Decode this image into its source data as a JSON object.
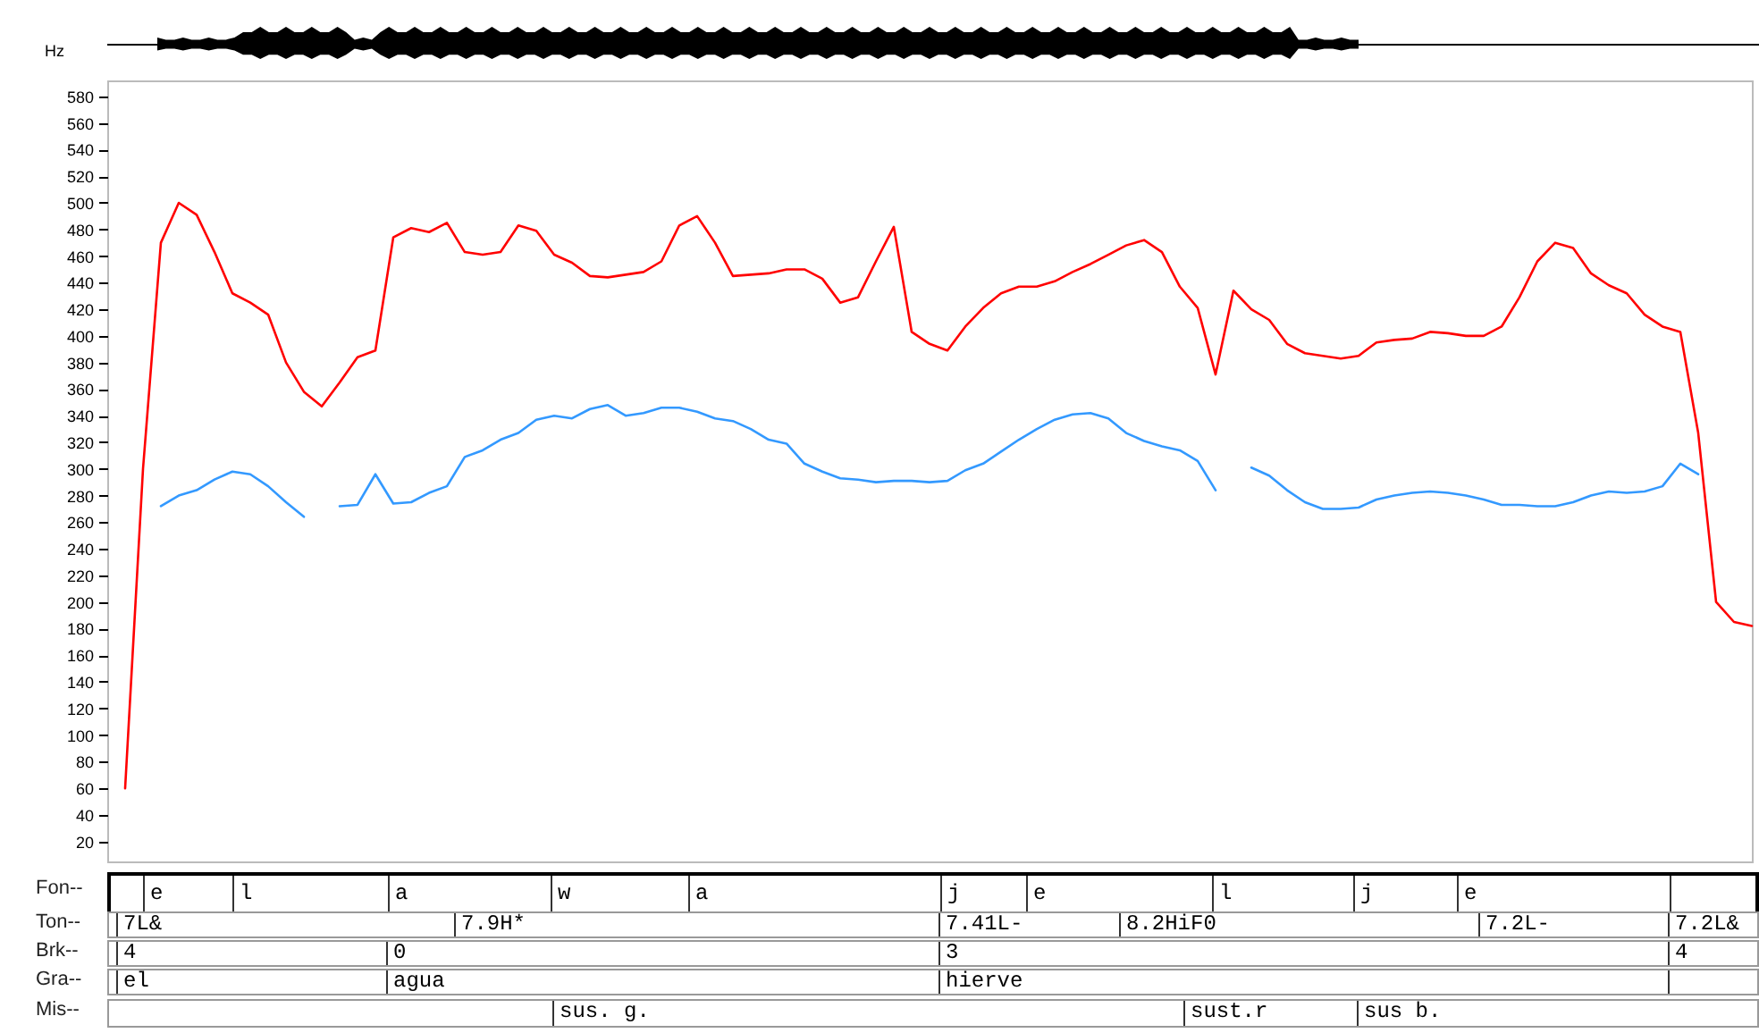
{
  "chart_data": {
    "type": "line",
    "ylabel": "Hz",
    "categories": [
      null,
      null,
      null,
      null,
      null,
      null,
      null,
      null,
      null,
      null,
      null,
      null,
      null,
      null,
      null,
      null,
      null,
      null,
      null,
      null,
      null,
      null,
      null,
      null,
      null,
      null,
      null,
      null,
      null,
      null,
      null,
      null,
      null,
      null,
      null,
      null,
      null,
      null,
      null,
      null,
      null,
      null,
      null,
      null,
      null,
      null,
      null,
      null,
      null,
      null,
      null,
      null,
      null,
      null,
      null,
      null,
      null,
      null,
      null,
      null,
      null,
      null,
      null,
      null,
      null,
      null,
      null,
      null,
      null,
      null,
      null,
      null,
      null,
      null,
      null,
      null,
      null,
      null,
      null,
      null,
      null,
      null,
      null,
      null,
      null,
      null,
      null,
      null,
      null,
      null,
      null,
      null,
      null
    ],
    "series": [
      {
        "color": "#ff0000",
        "values": [
          null,
          60,
          300,
          470,
          500,
          491,
          463,
          432,
          425,
          416,
          380,
          358,
          347,
          365,
          384,
          389,
          474,
          481,
          478,
          485,
          463,
          461,
          463,
          483,
          479,
          461,
          455,
          445,
          444,
          446,
          448,
          456,
          483,
          490,
          470,
          445,
          446,
          447,
          450,
          450,
          443,
          425,
          429,
          456,
          482,
          403,
          394,
          389,
          407,
          421,
          432,
          437,
          437,
          441,
          448,
          454,
          461,
          468,
          472,
          463,
          437,
          421,
          371,
          434,
          420,
          412,
          394,
          387,
          385,
          383,
          385,
          395,
          397,
          398,
          403,
          402,
          400,
          400,
          407,
          429,
          456,
          470,
          466,
          447,
          438,
          432,
          416,
          407,
          403,
          327,
          200,
          185,
          182
        ]
      },
      {
        "color": "#3399ff",
        "values": [
          null,
          null,
          null,
          272,
          280,
          284,
          292,
          298,
          296,
          287,
          275,
          264,
          null,
          272,
          273,
          296,
          274,
          275,
          282,
          287,
          309,
          314,
          322,
          327,
          337,
          340,
          338,
          345,
          348,
          340,
          342,
          346,
          346,
          343,
          338,
          336,
          330,
          322,
          319,
          304,
          298,
          293,
          292,
          290,
          291,
          291,
          290,
          291,
          299,
          304,
          313,
          322,
          330,
          337,
          341,
          342,
          338,
          327,
          321,
          317,
          314,
          306,
          284,
          null,
          301,
          295,
          284,
          275,
          270,
          270,
          271,
          277,
          280,
          282,
          283,
          282,
          280,
          277,
          273,
          273,
          272,
          272,
          275,
          280,
          283,
          282,
          283,
          287,
          304,
          296,
          null,
          null,
          null
        ]
      }
    ],
    "ylim": [
      5,
      592
    ],
    "yticks": [
      20,
      40,
      60,
      80,
      100,
      120,
      140,
      160,
      180,
      200,
      220,
      240,
      260,
      280,
      300,
      320,
      340,
      360,
      380,
      400,
      420,
      440,
      460,
      480,
      500,
      520,
      540,
      560,
      580
    ],
    "tick_labels": "y",
    "annotations": [
      "Fon--",
      "Ton--",
      "Brk--",
      "Gra--",
      "Mis--",
      "e",
      "l",
      "a",
      "w",
      "a",
      "j",
      "e",
      "l",
      "j",
      "e",
      "7L&",
      "7.9H*",
      "7.41L-",
      "8.2HiF0",
      "7.2L-",
      "7.2L&",
      "4",
      "0",
      "3",
      "4",
      "el",
      "agua",
      "hierve",
      "sus. g.",
      "sust.r",
      "sus b."
    ]
  }
}
